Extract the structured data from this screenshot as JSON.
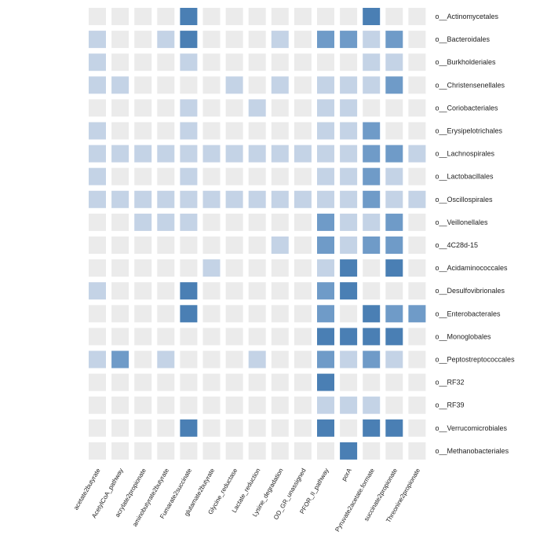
{
  "chart_data": {
    "type": "heatmap",
    "title": "",
    "xlabel": "",
    "ylabel": "",
    "grid": false,
    "legend": "none",
    "colors": {
      "empty": "#ebebeb",
      "light": "#c4d3e6",
      "medium": "#8daed3",
      "dark": "#6f9bc8",
      "darkest": "#4a7fb4"
    },
    "rows": [
      "o__Actinomycetales",
      "o__Bacteroidales",
      "o__Burkholderiales",
      "o__Christensenellales",
      "o__Coriobacteriales",
      "o__Erysipelotrichales",
      "o__Lachnospirales",
      "o__Lactobacillales",
      "o__Oscillospirales",
      "o__Veillonellales",
      "o__4C28d-15",
      "o__Acidaminococcales",
      "o__Desulfovibrionales",
      "o__Enterobacterales",
      "o__Monoglobales",
      "o__Peptostreptococcales",
      "o__RF32",
      "o__RF39",
      "o__Verrucomicrobiales",
      "o__Methanobacteriales"
    ],
    "columns": [
      "acetate2butyrate",
      "AcetylCoA_pathway",
      "acrylate2propionate",
      "aminobutyrate2butyrate",
      "Fumarate2succinate",
      "glutamate2butyrate",
      "Glycine_reductase",
      "Lactate_reduction",
      "Lysine_degradation",
      "OD_GR_unassigned",
      "PFOR_II_pathway",
      "porA",
      "Pyruvate2acetate.formate",
      "succinate2propionate",
      "Threonine2propionate"
    ],
    "values": [
      [
        0,
        0,
        0,
        0,
        3,
        0,
        0,
        0,
        0,
        0,
        0,
        0,
        3,
        0,
        0
      ],
      [
        1,
        0,
        0,
        1,
        3,
        0,
        0,
        0,
        1,
        0,
        2,
        2,
        1,
        2,
        0
      ],
      [
        1,
        0,
        0,
        0,
        1,
        0,
        0,
        0,
        0,
        0,
        0,
        0,
        1,
        1,
        0
      ],
      [
        1,
        1,
        0,
        0,
        0,
        0,
        1,
        0,
        1,
        0,
        1,
        1,
        1,
        2,
        0
      ],
      [
        0,
        0,
        0,
        0,
        1,
        0,
        0,
        1,
        0,
        0,
        1,
        1,
        0,
        0,
        0
      ],
      [
        1,
        0,
        0,
        0,
        1,
        0,
        0,
        0,
        0,
        0,
        1,
        1,
        2,
        0,
        0
      ],
      [
        1,
        1,
        1,
        1,
        1,
        1,
        1,
        1,
        1,
        1,
        1,
        1,
        2,
        2,
        1
      ],
      [
        1,
        0,
        0,
        0,
        1,
        0,
        0,
        0,
        0,
        0,
        1,
        1,
        2,
        1,
        0
      ],
      [
        1,
        1,
        1,
        1,
        1,
        1,
        1,
        1,
        1,
        1,
        1,
        1,
        2,
        1,
        1
      ],
      [
        0,
        0,
        1,
        1,
        1,
        0,
        0,
        0,
        0,
        0,
        2,
        1,
        1,
        2,
        0
      ],
      [
        0,
        0,
        0,
        0,
        0,
        0,
        0,
        0,
        1,
        0,
        2,
        1,
        2,
        2,
        0
      ],
      [
        0,
        0,
        0,
        0,
        0,
        1,
        0,
        0,
        0,
        0,
        1,
        3,
        0,
        3,
        0
      ],
      [
        1,
        0,
        0,
        0,
        3,
        0,
        0,
        0,
        0,
        0,
        2,
        3,
        0,
        0,
        0
      ],
      [
        0,
        0,
        0,
        0,
        3,
        0,
        0,
        0,
        0,
        0,
        2,
        0,
        3,
        2,
        2
      ],
      [
        0,
        0,
        0,
        0,
        0,
        0,
        0,
        0,
        0,
        0,
        3,
        3,
        3,
        3,
        0
      ],
      [
        1,
        2,
        0,
        1,
        0,
        0,
        0,
        1,
        0,
        0,
        2,
        1,
        2,
        1,
        0
      ],
      [
        0,
        0,
        0,
        0,
        0,
        0,
        0,
        0,
        0,
        0,
        3,
        0,
        0,
        0,
        0
      ],
      [
        0,
        0,
        0,
        0,
        0,
        0,
        0,
        0,
        0,
        0,
        1,
        1,
        1,
        0,
        0
      ],
      [
        0,
        0,
        0,
        0,
        3,
        0,
        0,
        0,
        0,
        0,
        3,
        0,
        3,
        3,
        0
      ],
      [
        0,
        0,
        0,
        0,
        0,
        0,
        0,
        0,
        0,
        0,
        0,
        3,
        0,
        0,
        0
      ]
    ]
  }
}
